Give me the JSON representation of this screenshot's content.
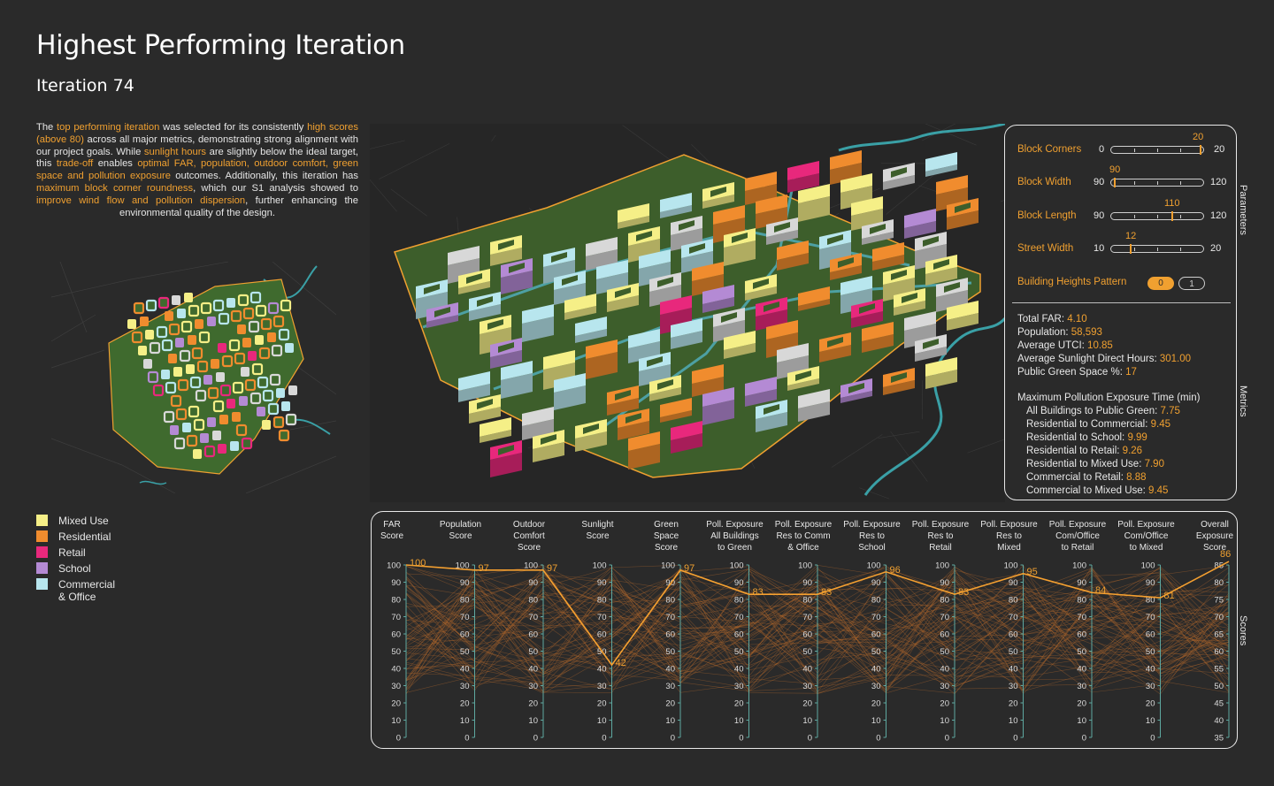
{
  "title": "Highest Performing Iteration",
  "subtitle": "Iteration 74",
  "description": [
    {
      "t": "The ",
      "h": false
    },
    {
      "t": "top performing iteration",
      "h": true
    },
    {
      "t": " was selected for its consistently ",
      "h": false
    },
    {
      "t": "high scores (above 80)",
      "h": true
    },
    {
      "t": " across all major metrics, demonstrating strong alignment with our project goals. While ",
      "h": false
    },
    {
      "t": "sunlight hours",
      "h": true
    },
    {
      "t": " are slightly below the ideal target, this ",
      "h": false
    },
    {
      "t": "trade-off",
      "h": true
    },
    {
      "t": " enables ",
      "h": false
    },
    {
      "t": "optimal FAR, population, outdoor comfort, green space and pollution exposure",
      "h": true
    },
    {
      "t": " outcomes. Additionally, this iteration has ",
      "h": false
    },
    {
      "t": "maximum block corner roundness",
      "h": true
    },
    {
      "t": ", which our S1 analysis showed to ",
      "h": false
    },
    {
      "t": "improve wind flow and pollution dispersion",
      "h": true
    },
    {
      "t": ", further enhancing the environmental quality of the design.",
      "h": false
    }
  ],
  "legend": [
    {
      "label": "Mixed Use",
      "color": "#f5ef87"
    },
    {
      "label": "Residential",
      "color": "#f08c2e"
    },
    {
      "label": "Retail",
      "color": "#e8287c"
    },
    {
      "label": "School",
      "color": "#b48ad4"
    },
    {
      "label": "Commercial\n& Office",
      "color": "#b8e6ee"
    }
  ],
  "parameters": {
    "side_label": "Parameters",
    "block_corners": {
      "label": "Block Corners",
      "min": "0",
      "max": "20",
      "value": "20"
    },
    "block_width": {
      "label": "Block Width",
      "min": "90",
      "max": "120",
      "value": "90"
    },
    "block_length": {
      "label": "Block Length",
      "min": "90",
      "max": "120",
      "value": "110"
    },
    "street_width": {
      "label": "Street Width",
      "min": "10",
      "max": "20",
      "value": "12"
    },
    "heights_pattern": {
      "label": "Building Heights Pattern",
      "options": [
        "0",
        "1"
      ],
      "selected": "0"
    }
  },
  "metrics": {
    "side_label": "Metrics",
    "total_far": {
      "label": "Total FAR: ",
      "value": "4.10"
    },
    "population": {
      "label": "Population: ",
      "value": "58,593"
    },
    "utci": {
      "label": "Average UTCI: ",
      "value": "10.85"
    },
    "sunlight": {
      "label": "Average Sunlight Direct Hours: ",
      "value": "301.00"
    },
    "green": {
      "label": "Public Green Space %: ",
      "value": "17"
    },
    "pollution_title": "Maximum Pollution Exposure Time (min)",
    "pollution": [
      {
        "label": "All Buildings to Public Green: ",
        "value": "7.75"
      },
      {
        "label": "Residential to Commercial: ",
        "value": "9.45"
      },
      {
        "label": "Residential to School: ",
        "value": "9.99"
      },
      {
        "label": "Residential to Retail: ",
        "value": "9.26"
      },
      {
        "label": "Residential to Mixed Use: ",
        "value": "7.90"
      },
      {
        "label": "Commercial to Retail: ",
        "value": "8.88"
      },
      {
        "label": "Commercial to Mixed Use: ",
        "value": "9.45"
      }
    ]
  },
  "scores_side_label": "Scores",
  "colors": {
    "accent": "#f0a030",
    "highlight_line": "#f5a030",
    "bg_lines": "#b86a2c",
    "axis": "#5ea8a0"
  },
  "chart_data": {
    "type": "parallel-coordinates",
    "axes": [
      {
        "name": "FAR\nScore",
        "ticks": [
          0,
          10,
          20,
          30,
          40,
          50,
          60,
          70,
          80,
          90,
          100
        ],
        "value": 100
      },
      {
        "name": "Population\nScore",
        "ticks": [
          0,
          10,
          20,
          30,
          40,
          50,
          60,
          70,
          80,
          90,
          100
        ],
        "value": 97
      },
      {
        "name": "Outdoor\nComfort\nScore",
        "ticks": [
          0,
          10,
          20,
          30,
          40,
          50,
          60,
          70,
          80,
          90,
          100
        ],
        "value": 97
      },
      {
        "name": "Sunlight\nScore",
        "ticks": [
          0,
          10,
          20,
          30,
          40,
          50,
          60,
          70,
          80,
          90,
          100
        ],
        "value": 42
      },
      {
        "name": "Green\nSpace\nScore",
        "ticks": [
          0,
          10,
          20,
          30,
          40,
          50,
          60,
          70,
          80,
          90,
          100
        ],
        "value": 97
      },
      {
        "name": "Poll. Exposure\nAll Buildings\nto Green",
        "ticks": [
          0,
          10,
          20,
          30,
          40,
          50,
          60,
          70,
          80,
          90,
          100
        ],
        "value": 83
      },
      {
        "name": "Poll. Exposure\nRes to Comm\n& Office",
        "ticks": [
          0,
          10,
          20,
          30,
          40,
          50,
          60,
          70,
          80,
          90,
          100
        ],
        "value": 83
      },
      {
        "name": "Poll. Exposure\nRes to\nSchool",
        "ticks": [
          0,
          10,
          20,
          30,
          40,
          50,
          60,
          70,
          80,
          90,
          100
        ],
        "value": 96
      },
      {
        "name": "Poll. Exposure\nRes to\nRetail",
        "ticks": [
          0,
          10,
          20,
          30,
          40,
          50,
          60,
          70,
          80,
          90,
          100
        ],
        "value": 83
      },
      {
        "name": "Poll. Exposure\nRes to\nMixed",
        "ticks": [
          0,
          10,
          20,
          30,
          40,
          50,
          60,
          70,
          80,
          90,
          100
        ],
        "value": 95
      },
      {
        "name": "Poll. Exposure\nCom/Office\nto Retail",
        "ticks": [
          0,
          10,
          20,
          30,
          40,
          50,
          60,
          70,
          80,
          90,
          100
        ],
        "value": 84
      },
      {
        "name": "Poll. Exposure\nCom/Office\nto Mixed",
        "ticks": [
          0,
          10,
          20,
          30,
          40,
          50,
          60,
          70,
          80,
          90,
          100
        ],
        "value": 81
      },
      {
        "name": "Overall\nExposure\nScore",
        "ticks": [
          35,
          40,
          45,
          50,
          55,
          60,
          65,
          70,
          75,
          80,
          85
        ],
        "value": 86
      }
    ],
    "highlight_labels": [
      "100",
      "97",
      "97",
      "42",
      "97",
      "83",
      "83",
      "96",
      "83",
      "95",
      "84",
      "81",
      "86"
    ]
  }
}
